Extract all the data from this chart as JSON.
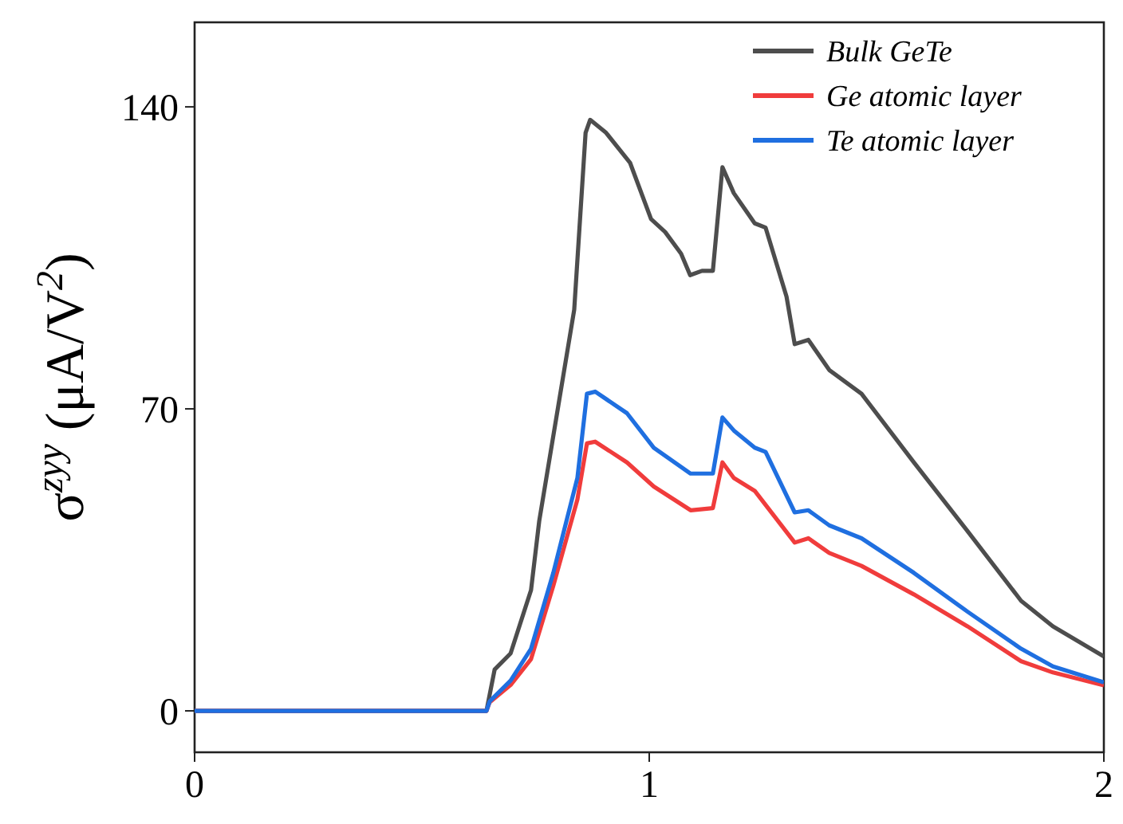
{
  "chart_data": {
    "type": "line",
    "ylabel": "σ$^{zyy}$ (μA/V$^{2}$)",
    "xlim": [
      0,
      2
    ],
    "xticks": [
      0,
      1,
      2
    ],
    "ylim": [
      -9.6,
      159.6
    ],
    "yticks": [
      0,
      70,
      140
    ],
    "legend": "top right",
    "grid": false,
    "marker": "none",
    "line_style": "solid",
    "series": [
      {
        "name": "Bulk GeTe",
        "color": "#4d4d4d",
        "x": [
          0,
          0.642,
          0.66,
          0.695,
          0.74,
          0.758,
          0.835,
          0.86,
          0.87,
          0.905,
          0.958,
          1.004,
          1.035,
          1.07,
          1.09,
          1.116,
          1.14,
          1.161,
          1.186,
          1.232,
          1.256,
          1.302,
          1.32,
          1.35,
          1.396,
          1.467,
          1.582,
          1.7,
          1.818,
          1.888,
          2
        ],
        "values": [
          0,
          0,
          9.6,
          13.3,
          28,
          44,
          93,
          134,
          137,
          134,
          127,
          114,
          111,
          106,
          101,
          102,
          102,
          126,
          120,
          113,
          112,
          96,
          85,
          86,
          79,
          73.5,
          57.6,
          41.7,
          25.5,
          19.6,
          12.6
        ]
      },
      {
        "name": "Ge atomic layer",
        "color": "#f03c3c",
        "x": [
          0,
          0.642,
          0.649,
          0.695,
          0.74,
          0.789,
          0.842,
          0.863,
          0.881,
          0.951,
          1.01,
          1.091,
          1.14,
          1.161,
          1.186,
          1.232,
          1.32,
          1.35,
          1.396,
          1.467,
          1.582,
          1.7,
          1.818,
          1.888,
          2
        ],
        "values": [
          0,
          0,
          2,
          6,
          12,
          29,
          49,
          62,
          62.4,
          57.6,
          52,
          46.5,
          47,
          57.6,
          54,
          51,
          39,
          40,
          36.6,
          33.6,
          27,
          19.6,
          11.5,
          8.9,
          5.9
        ]
      },
      {
        "name": "Te atomic layer",
        "color": "#1f6fe0",
        "x": [
          0,
          0.642,
          0.649,
          0.695,
          0.74,
          0.789,
          0.842,
          0.863,
          0.881,
          0.951,
          1.01,
          1.091,
          1.14,
          1.161,
          1.186,
          1.232,
          1.256,
          1.32,
          1.35,
          1.396,
          1.467,
          1.582,
          1.7,
          1.818,
          1.888,
          2
        ],
        "values": [
          0,
          0,
          2.2,
          7,
          14.4,
          32,
          54,
          73.5,
          74,
          69,
          61,
          55,
          55,
          68,
          65,
          61,
          60,
          46,
          46.5,
          43,
          40,
          32,
          23,
          14.4,
          10.3,
          6.6
        ]
      }
    ]
  }
}
